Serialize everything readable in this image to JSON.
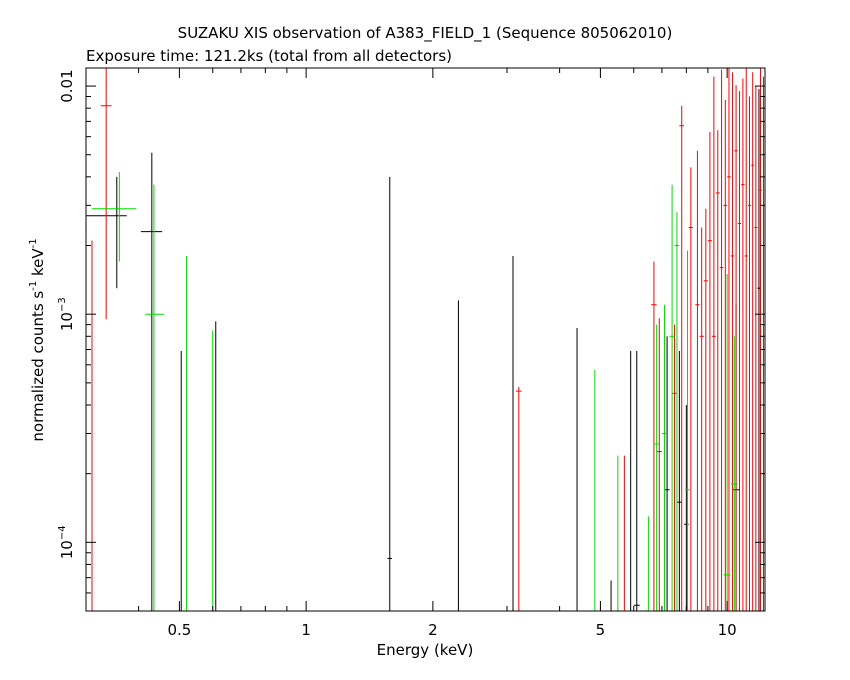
{
  "chart_data": {
    "type": "scatter",
    "title": "SUZAKU XIS observation of A383_FIELD_1 (Sequence 805062010)",
    "subtitle": "Exposure time: 121.2ks (total from all detectors)",
    "xlabel": "Energy (keV)",
    "ylabel_main": "normalized counts s",
    "ylabel_sup1": "-1",
    "ylabel_mid": " keV",
    "ylabel_sup2": "-1",
    "x_scale": "log",
    "y_scale": "log",
    "xlim": [
      0.3,
      12.3
    ],
    "ylim": [
      5e-05,
      0.012
    ],
    "x_ticks": [
      {
        "value": 0.5,
        "label": "0.5"
      },
      {
        "value": 1,
        "label": "1"
      },
      {
        "value": 2,
        "label": "2"
      },
      {
        "value": 5,
        "label": "5"
      },
      {
        "value": 10,
        "label": "10"
      }
    ],
    "y_ticks": [
      {
        "value": 0.0001,
        "label": "10",
        "sup": "−4"
      },
      {
        "value": 0.001,
        "label": "10",
        "sup": "−3"
      },
      {
        "value": 0.01,
        "label": "0.01",
        "sup": ""
      }
    ],
    "grid": false,
    "legend": "none",
    "series": [
      {
        "color": "#000000",
        "points": [
          {
            "x": 0.355,
            "xlo": 0.3,
            "xhi": 0.375,
            "y": 0.0027,
            "ylo": 0.0013,
            "yhi": 0.004
          },
          {
            "x": 0.43,
            "xlo": 0.405,
            "xhi": 0.455,
            "y": 0.0023,
            "ylo": 5e-05,
            "yhi": 0.0051
          },
          {
            "x": 0.505,
            "xlo": 0.505,
            "xhi": 0.505,
            "y": 5e-05,
            "ylo": 5e-05,
            "yhi": 0.00069
          },
          {
            "x": 0.61,
            "xlo": 0.61,
            "xhi": 0.61,
            "y": 5e-05,
            "ylo": 5e-05,
            "yhi": 0.00093
          },
          {
            "x": 1.58,
            "xlo": 1.56,
            "xhi": 1.6,
            "y": 8.5e-05,
            "ylo": 5e-05,
            "yhi": 0.004
          },
          {
            "x": 2.3,
            "xlo": 2.3,
            "xhi": 2.3,
            "y": 5e-05,
            "ylo": 5e-05,
            "yhi": 0.00115
          },
          {
            "x": 3.1,
            "xlo": 3.1,
            "xhi": 3.1,
            "y": 5e-05,
            "ylo": 5e-05,
            "yhi": 0.0018
          },
          {
            "x": 4.4,
            "xlo": 4.4,
            "xhi": 4.4,
            "y": 5e-05,
            "ylo": 5e-05,
            "yhi": 0.00087
          },
          {
            "x": 5.3,
            "xlo": 5.3,
            "xhi": 5.3,
            "y": 5e-05,
            "ylo": 5e-05,
            "yhi": 6.8e-05
          },
          {
            "x": 5.9,
            "xlo": 5.9,
            "xhi": 5.9,
            "y": 5e-05,
            "ylo": 5e-05,
            "yhi": 0.00069
          },
          {
            "x": 6.1,
            "xlo": 6.0,
            "xhi": 6.2,
            "y": 5.3e-05,
            "ylo": 5e-05,
            "yhi": 0.00069
          },
          {
            "x": 7.2,
            "xlo": 7.1,
            "xhi": 7.3,
            "y": 0.00017,
            "ylo": 5e-05,
            "yhi": 0.0008
          },
          {
            "x": 7.7,
            "xlo": 7.6,
            "xhi": 7.8,
            "y": 0.00015,
            "ylo": 5e-05,
            "yhi": 0.00069
          },
          {
            "x": 8.0,
            "xlo": 7.9,
            "xhi": 8.1,
            "y": 0.00012,
            "ylo": 5e-05,
            "yhi": 0.0004
          },
          {
            "x": 10.5,
            "xlo": 10.3,
            "xhi": 10.7,
            "y": 0.00017,
            "ylo": 5e-05,
            "yhi": 0.0011
          },
          {
            "x": 11.9,
            "xlo": 11.8,
            "xhi": 12.0,
            "y": 0.0013,
            "ylo": 5e-05,
            "yhi": 0.0097
          }
        ]
      },
      {
        "color": "#ff0000",
        "points": [
          {
            "x": 0.31,
            "xlo": 0.31,
            "xhi": 0.31,
            "y": 5e-05,
            "ylo": 5e-05,
            "yhi": 0.0021
          },
          {
            "x": 0.335,
            "xlo": 0.325,
            "xhi": 0.345,
            "y": 0.0082,
            "ylo": 0.00095,
            "yhi": 0.0125
          },
          {
            "x": 3.2,
            "xlo": 3.15,
            "xhi": 3.25,
            "y": 0.00046,
            "ylo": 5e-05,
            "yhi": 0.00048
          },
          {
            "x": 5.7,
            "xlo": 5.7,
            "xhi": 5.7,
            "y": 5e-05,
            "ylo": 5e-05,
            "yhi": 0.00024
          },
          {
            "x": 6.7,
            "xlo": 6.6,
            "xhi": 6.8,
            "y": 0.0011,
            "ylo": 5e-05,
            "yhi": 0.0017
          },
          {
            "x": 6.9,
            "xlo": 6.8,
            "xhi": 7.0,
            "y": 0.00025,
            "ylo": 5e-05,
            "yhi": 0.00096
          },
          {
            "x": 7.5,
            "xlo": 7.4,
            "xhi": 7.6,
            "y": 0.00045,
            "ylo": 5e-05,
            "yhi": 0.0009
          },
          {
            "x": 7.8,
            "xlo": 7.7,
            "xhi": 7.9,
            "y": 0.0067,
            "ylo": 5e-05,
            "yhi": 0.0082
          },
          {
            "x": 8.2,
            "xlo": 8.1,
            "xhi": 8.3,
            "y": 0.0024,
            "ylo": 5e-05,
            "yhi": 0.0044
          },
          {
            "x": 8.5,
            "xlo": 8.4,
            "xhi": 8.6,
            "y": 0.0011,
            "ylo": 5e-05,
            "yhi": 0.0052
          },
          {
            "x": 8.7,
            "xlo": 8.6,
            "xhi": 8.8,
            "y": 0.0008,
            "ylo": 5e-05,
            "yhi": 0.0024
          },
          {
            "x": 8.9,
            "xlo": 8.8,
            "xhi": 9.0,
            "y": 0.0014,
            "ylo": 5e-05,
            "yhi": 0.0029
          },
          {
            "x": 9.1,
            "xlo": 9.0,
            "xhi": 9.2,
            "y": 0.0021,
            "ylo": 5e-05,
            "yhi": 0.0063
          },
          {
            "x": 9.3,
            "xlo": 9.2,
            "xhi": 9.4,
            "y": 0.0008,
            "ylo": 5e-05,
            "yhi": 0.011
          },
          {
            "x": 9.5,
            "xlo": 9.4,
            "xhi": 9.6,
            "y": 0.0034,
            "ylo": 5e-05,
            "yhi": 0.0064
          },
          {
            "x": 9.7,
            "xlo": 9.6,
            "xhi": 9.8,
            "y": 0.0016,
            "ylo": 5e-05,
            "yhi": 0.0118
          },
          {
            "x": 9.9,
            "xlo": 9.8,
            "xhi": 10.0,
            "y": 0.003,
            "ylo": 5e-05,
            "yhi": 0.0087
          },
          {
            "x": 10.1,
            "xlo": 10.0,
            "xhi": 10.2,
            "y": 0.004,
            "ylo": 5e-05,
            "yhi": 0.012
          },
          {
            "x": 10.3,
            "xlo": 10.2,
            "xhi": 10.4,
            "y": 0.0018,
            "ylo": 5e-05,
            "yhi": 0.0115
          },
          {
            "x": 10.5,
            "xlo": 10.4,
            "xhi": 10.6,
            "y": 0.0052,
            "ylo": 5e-05,
            "yhi": 0.0101
          },
          {
            "x": 10.7,
            "xlo": 10.6,
            "xhi": 10.8,
            "y": 0.0025,
            "ylo": 5e-05,
            "yhi": 0.0095
          },
          {
            "x": 10.9,
            "xlo": 10.8,
            "xhi": 11.0,
            "y": 0.0037,
            "ylo": 5e-05,
            "yhi": 0.0108
          },
          {
            "x": 11.1,
            "xlo": 11.0,
            "xhi": 11.2,
            "y": 0.0018,
            "ylo": 5e-05,
            "yhi": 0.0122
          },
          {
            "x": 11.3,
            "xlo": 11.2,
            "xhi": 11.4,
            "y": 0.003,
            "ylo": 5e-05,
            "yhi": 0.009
          },
          {
            "x": 11.5,
            "xlo": 11.4,
            "xhi": 11.6,
            "y": 0.0045,
            "ylo": 5e-05,
            "yhi": 0.0115
          },
          {
            "x": 11.7,
            "xlo": 11.6,
            "xhi": 11.8,
            "y": 0.0024,
            "ylo": 5e-05,
            "yhi": 0.01
          },
          {
            "x": 12.0,
            "xlo": 11.9,
            "xhi": 12.1,
            "y": 0.0035,
            "ylo": 5e-05,
            "yhi": 0.012
          },
          {
            "x": 12.2,
            "xlo": 12.1,
            "xhi": 12.3,
            "y": 0.002,
            "ylo": 5e-05,
            "yhi": 0.011
          }
        ]
      },
      {
        "color": "#00dd00",
        "points": [
          {
            "x": 0.36,
            "xlo": 0.31,
            "xhi": 0.395,
            "y": 0.0029,
            "ylo": 0.0017,
            "yhi": 0.0042
          },
          {
            "x": 0.435,
            "xlo": 0.415,
            "xhi": 0.46,
            "y": 0.001,
            "ylo": 5e-05,
            "yhi": 0.0037
          },
          {
            "x": 0.52,
            "xlo": 0.52,
            "xhi": 0.52,
            "y": 5e-05,
            "ylo": 5e-05,
            "yhi": 0.0018
          },
          {
            "x": 0.6,
            "xlo": 0.6,
            "xhi": 0.6,
            "y": 5e-05,
            "ylo": 5e-05,
            "yhi": 0.00085
          },
          {
            "x": 4.85,
            "xlo": 4.85,
            "xhi": 4.85,
            "y": 5e-05,
            "ylo": 5e-05,
            "yhi": 0.00057
          },
          {
            "x": 5.5,
            "xlo": 5.5,
            "xhi": 5.5,
            "y": 5e-05,
            "ylo": 5e-05,
            "yhi": 0.00024
          },
          {
            "x": 6.5,
            "xlo": 6.5,
            "xhi": 6.5,
            "y": 5e-05,
            "ylo": 5e-05,
            "yhi": 0.00013
          },
          {
            "x": 6.8,
            "xlo": 6.7,
            "xhi": 6.9,
            "y": 0.00027,
            "ylo": 5e-05,
            "yhi": 0.0009
          },
          {
            "x": 7.1,
            "xlo": 7.0,
            "xhi": 7.2,
            "y": 0.0003,
            "ylo": 5e-05,
            "yhi": 0.0011
          },
          {
            "x": 7.4,
            "xlo": 7.3,
            "xhi": 7.5,
            "y": 0.0008,
            "ylo": 5e-05,
            "yhi": 0.0037
          },
          {
            "x": 7.6,
            "xlo": 7.5,
            "xhi": 7.7,
            "y": 0.002,
            "ylo": 5e-05,
            "yhi": 0.0028
          },
          {
            "x": 8.05,
            "xlo": 7.95,
            "xhi": 8.15,
            "y": 0.00017,
            "ylo": 5e-05,
            "yhi": 0.0019
          },
          {
            "x": 10.0,
            "xlo": 9.8,
            "xhi": 10.2,
            "y": 7.2e-05,
            "ylo": 5e-05,
            "yhi": 0.0015
          },
          {
            "x": 10.4,
            "xlo": 10.2,
            "xhi": 10.6,
            "y": 0.00018,
            "ylo": 5e-05,
            "yhi": 0.0008
          }
        ]
      }
    ]
  }
}
